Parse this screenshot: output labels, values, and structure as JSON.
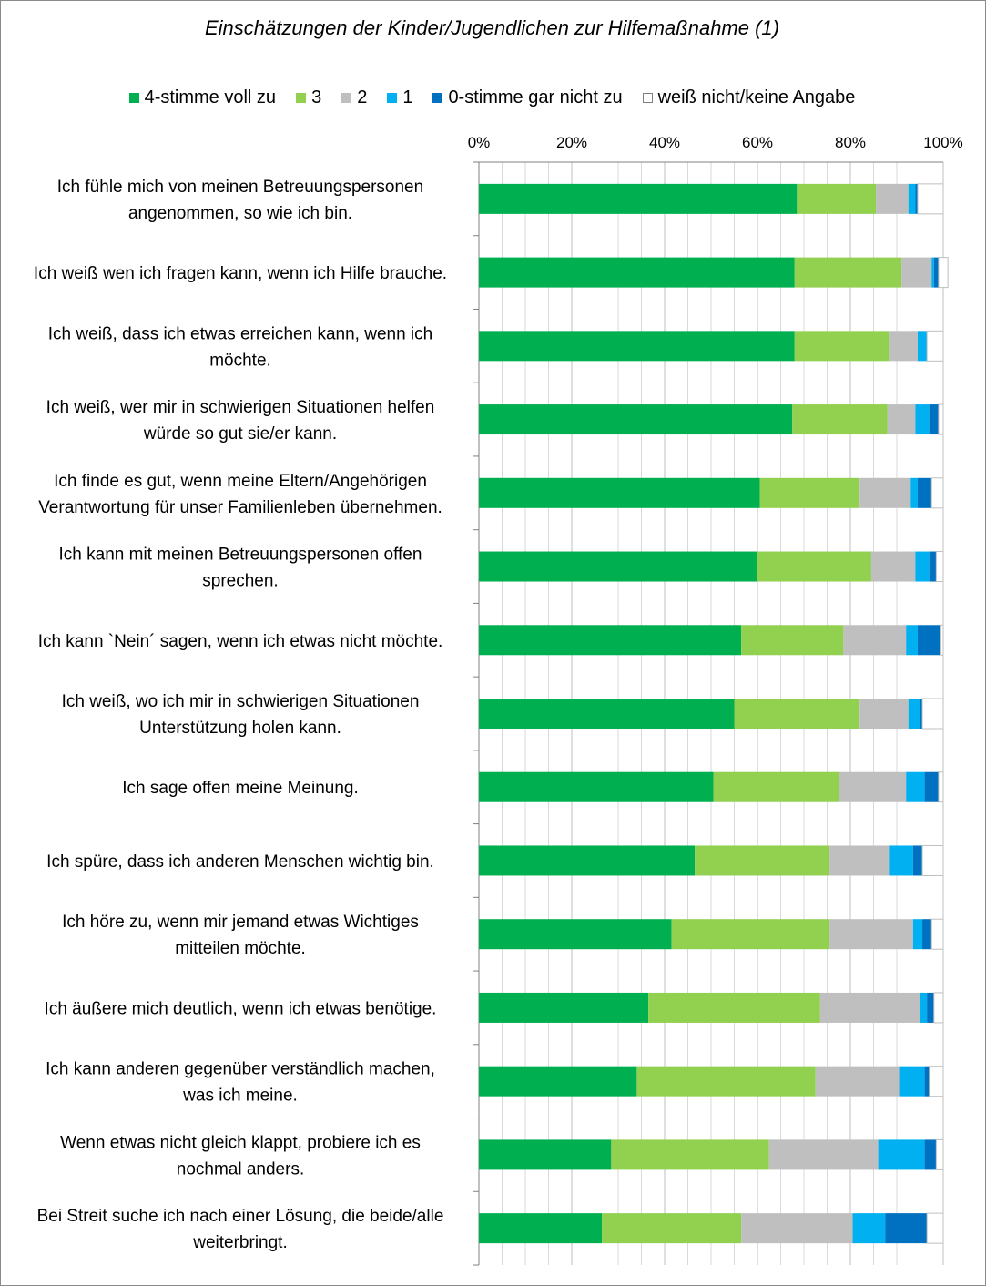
{
  "chart_data": {
    "type": "bar",
    "orientation": "horizontal",
    "stacked": "percent",
    "title": "Einschätzungen der Kinder/Jugendlichen zur Hilfemaßnahme (1)",
    "xlim": [
      0,
      100
    ],
    "x_ticks": [
      "0%",
      "20%",
      "40%",
      "60%",
      "80%",
      "100%"
    ],
    "x_tick_values": [
      0,
      20,
      40,
      60,
      80,
      100
    ],
    "x_axis_position": "top",
    "grid": true,
    "legend_position": "top",
    "categories": [
      [
        "Ich fühle mich von meinen Betreuungspersonen",
        "angenommen, so wie ich bin."
      ],
      [
        "Ich weiß wen ich fragen kann, wenn ich Hilfe brauche."
      ],
      [
        "Ich weiß, dass ich etwas erreichen kann, wenn ich",
        "möchte."
      ],
      [
        "Ich weiß, wer mir in schwierigen Situationen helfen",
        "würde so gut sie/er kann."
      ],
      [
        "Ich finde es gut, wenn meine Eltern/Angehörigen",
        "Verantwortung für unser Familienleben übernehmen."
      ],
      [
        "Ich kann mit meinen Betreuungspersonen offen",
        "sprechen."
      ],
      [
        "Ich kann `Nein´ sagen, wenn ich etwas nicht möchte."
      ],
      [
        "Ich weiß, wo ich mir in schwierigen Situationen",
        "Unterstützung holen kann."
      ],
      [
        "Ich sage offen meine Meinung."
      ],
      [
        "Ich spüre, dass ich anderen Menschen wichtig bin."
      ],
      [
        "Ich höre zu, wenn mir jemand etwas Wichtiges",
        "mitteilen möchte."
      ],
      [
        "Ich äußere mich deutlich, wenn ich etwas benötige."
      ],
      [
        "Ich kann anderen gegenüber verständlich machen,",
        "was ich meine."
      ],
      [
        "Wenn etwas nicht gleich klappt, probiere ich es",
        "nochmal anders."
      ],
      [
        "Bei Streit suche ich nach einer Lösung, die beide/alle",
        "weiterbringt."
      ]
    ],
    "series": [
      {
        "name": "4-stimme voll zu",
        "color": "#00b050",
        "values": [
          68.5,
          68,
          68,
          67.5,
          60.5,
          60,
          56.5,
          55,
          50.5,
          46.5,
          41.5,
          36.5,
          34,
          28.5,
          26.5
        ]
      },
      {
        "name": "3",
        "color": "#92d050",
        "values": [
          17,
          23,
          20.5,
          20.5,
          21.5,
          24.5,
          22,
          27,
          27,
          29,
          34,
          37,
          38.5,
          34,
          30
        ]
      },
      {
        "name": "2",
        "color": "#bfbfbf",
        "values": [
          7,
          6.5,
          6,
          6,
          11,
          9.5,
          13.5,
          10.5,
          14.5,
          13,
          18,
          21.5,
          18,
          23.5,
          24
        ]
      },
      {
        "name": "1",
        "color": "#00b0f0",
        "values": [
          1.5,
          0.5,
          2,
          3,
          1.5,
          3,
          2.5,
          2.5,
          4,
          5,
          2,
          1.5,
          5.5,
          10,
          7
        ]
      },
      {
        "name": "0-stimme gar nicht zu",
        "color": "#0070c0",
        "values": [
          0.5,
          1,
          0,
          2,
          3,
          1.5,
          5,
          0.5,
          3,
          2,
          2,
          1.5,
          1,
          2.5,
          9
        ]
      },
      {
        "name": "weiß nicht/keine Angabe",
        "color": "#ffffff",
        "values": [
          5.5,
          2,
          3.5,
          1,
          2.5,
          1.5,
          0.5,
          4.5,
          1,
          4.5,
          2.5,
          2,
          3,
          1.5,
          3.5
        ]
      }
    ]
  }
}
